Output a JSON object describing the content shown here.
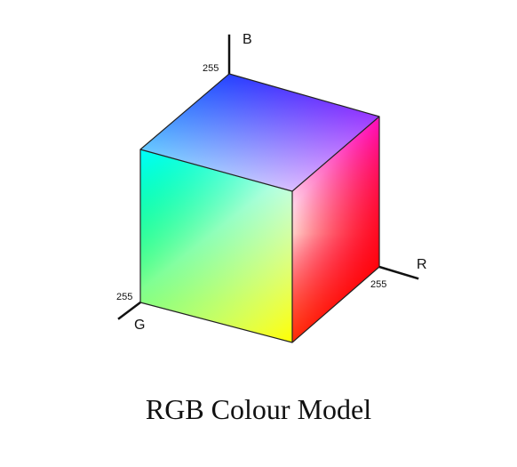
{
  "title": "RGB Colour Model",
  "axes": {
    "b": {
      "letter": "B",
      "max": "255"
    },
    "r": {
      "letter": "R",
      "max": "255"
    },
    "g": {
      "letter": "G",
      "max": "255"
    }
  },
  "colors": {
    "black": "#000000",
    "white": "#ffffff",
    "red": "#ff0000",
    "green": "#00ff00",
    "blue": "#0000ff",
    "cyan": "#00ffff",
    "magenta": "#ff00ff",
    "yellow": "#ffff00"
  }
}
